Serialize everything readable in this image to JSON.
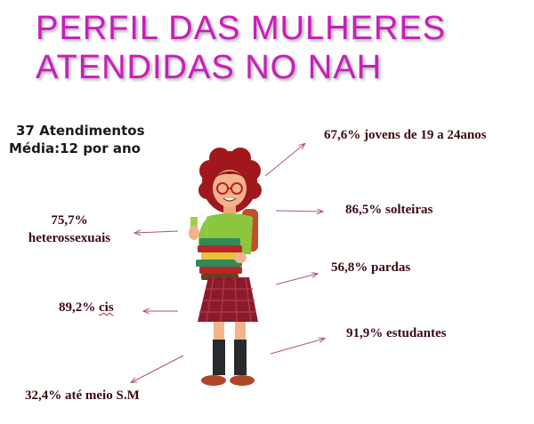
{
  "title": {
    "line1": "PERFIL DAS MULHERES",
    "line2": "ATENDIDAS NO NAH"
  },
  "summary": {
    "line1": "37 Atendimentos",
    "line2": "Média:12 por ano"
  },
  "stats": {
    "jovens": "67,6% jovens de 19 a 24anos",
    "solteiras": "86,5% solteiras",
    "pardas": "56,8% pardas",
    "estudantes": "91,9% estudantes",
    "hetero_pct": "75,7%",
    "hetero_label": "heterossexuais",
    "cis_pct": "89,2%",
    "cis_word": "cis",
    "salario": "32,4% até meio S.M"
  },
  "colors": {
    "title": "#c71fb9",
    "text": "#3a0a10",
    "arrow": "#b05560"
  }
}
